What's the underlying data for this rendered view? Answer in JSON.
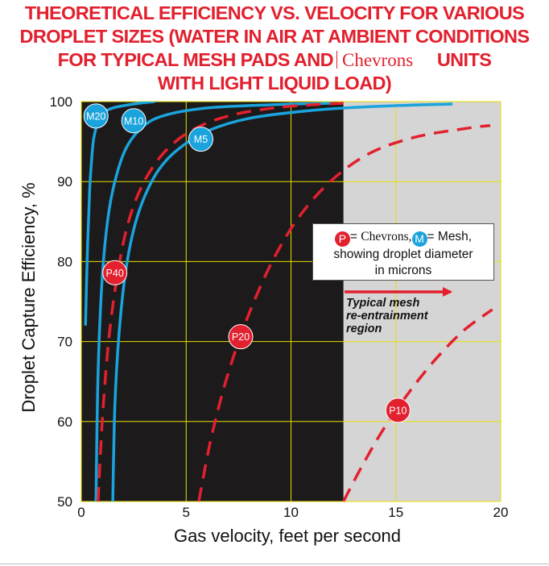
{
  "title": {
    "line1": "THEORETICAL EFFICIENCY VS. VELOCITY FOR VARIOUS",
    "line2": "DROPLET SIZES (WATER IN AIR AT AMBIENT CONDITIONS",
    "line3_a": "FOR TYPICAL MESH PADS AND",
    "line3_b": "Chevrons",
    "line3_c": "UNITS",
    "line4": "WITH LIGHT LIQUID LOAD)"
  },
  "legend_box": {
    "p_letter": "P",
    "p_sep": "=",
    "p_name": "Chevrons",
    "comma": ",",
    "m_letter": "M",
    "m_text": "= Mesh,",
    "line2": "showing droplet diameter",
    "line3": "in microns"
  },
  "region_note": {
    "line1": "Typical mesh",
    "line2": "re-entrainment",
    "line3": "region"
  },
  "colors": {
    "mesh_curve": "#1aa3dc",
    "chevron_curve": "#e2202e",
    "plot_background": "#1c1a1a",
    "reentrainment_region": "#d5d5d5",
    "gridline": "#e8e000",
    "title": "#e2202e"
  },
  "chart_data": {
    "type": "line",
    "xlabel": "Gas velocity, feet per second",
    "ylabel": "Droplet Capture Efficiency, %",
    "xlim": [
      0,
      20
    ],
    "ylim": [
      50,
      100
    ],
    "xticks": [
      "0",
      "5",
      "10",
      "15",
      "20"
    ],
    "yticks": [
      "50",
      "60",
      "70",
      "80",
      "90",
      "100"
    ],
    "grid": true,
    "shaded_region": {
      "x_from": 12.5,
      "x_to": 20,
      "label": "Typical mesh re-entrainment region"
    },
    "series": [
      {
        "name": "M20",
        "kind": "mesh",
        "label_at": [
          0.7,
          98.2
        ],
        "x": [
          0.2,
          0.3,
          0.4,
          0.5,
          0.6,
          0.8,
          1.0,
          1.5,
          2.5,
          3.5
        ],
        "y": [
          72,
          82,
          89,
          93,
          95.5,
          97.5,
          98.5,
          99.2,
          99.7,
          100
        ]
      },
      {
        "name": "M10",
        "kind": "mesh",
        "label_at": [
          2.5,
          97.6
        ],
        "x": [
          0.7,
          0.8,
          1.0,
          1.3,
          1.7,
          2.2,
          3.0,
          4.0,
          6.0,
          9.0,
          12.0
        ],
        "y": [
          50,
          66,
          78,
          86,
          91,
          94.5,
          97,
          98.3,
          99.2,
          99.6,
          99.8
        ]
      },
      {
        "name": "M5",
        "kind": "mesh",
        "label_at": [
          5.7,
          95.3
        ],
        "x": [
          1.5,
          1.6,
          1.8,
          2.1,
          2.5,
          3.0,
          3.7,
          4.6,
          6.0,
          8.0,
          11.0,
          14.0,
          17.7
        ],
        "y": [
          50,
          62,
          71,
          78.5,
          84,
          88,
          91.5,
          94,
          96.3,
          97.9,
          98.9,
          99.4,
          99.7
        ]
      },
      {
        "name": "P40",
        "kind": "chevron",
        "label_at": [
          1.6,
          78.6
        ],
        "x": [
          0.8,
          1.0,
          1.3,
          1.7,
          2.2,
          2.9,
          3.9,
          5.2,
          7.0,
          9.5,
          12.5
        ],
        "y": [
          50,
          60,
          70,
          78,
          84.5,
          89.5,
          93.5,
          96.3,
          98.2,
          99.3,
          99.8
        ]
      },
      {
        "name": "P20",
        "kind": "chevron",
        "label_at": [
          7.6,
          70.6
        ],
        "x": [
          5.6,
          6.2,
          7.0,
          8.0,
          9.2,
          10.5,
          12.0,
          13.8,
          16.0,
          18.5,
          19.5
        ],
        "y": [
          50,
          58,
          66,
          73.5,
          80.5,
          86,
          90.3,
          93.6,
          95.6,
          96.7,
          97.0
        ]
      },
      {
        "name": "P10",
        "kind": "chevron",
        "label_at": [
          15.1,
          61.4
        ],
        "x": [
          12.5,
          13.4,
          14.4,
          15.5,
          16.8,
          18.2,
          19.6
        ],
        "y": [
          50,
          54.5,
          59,
          63.2,
          67.5,
          71.3,
          74.0
        ]
      }
    ]
  }
}
